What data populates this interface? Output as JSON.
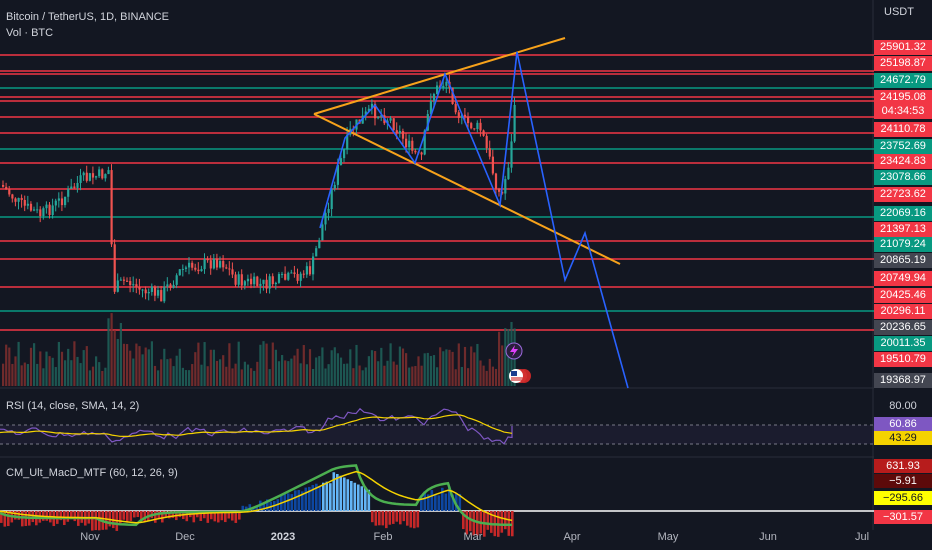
{
  "header": {
    "symbol_line": "Bitcoin / TetherUS, 1D, BINANCE",
    "volume_line": "Vol · BTC"
  },
  "price_axis": {
    "unit": "USDT",
    "tags": [
      {
        "value": "25901.32",
        "color": "#f23645"
      },
      {
        "value": "25198.87",
        "color": "#f23645"
      },
      {
        "value": "24672.79",
        "color": "#089981"
      },
      {
        "value": "24195.08",
        "color": "#f23645"
      },
      {
        "value": "04:34:53",
        "color": "#f23645"
      },
      {
        "value": "24110.78",
        "color": "#f23645"
      },
      {
        "value": "23752.69",
        "color": "#089981"
      },
      {
        "value": "23424.83",
        "color": "#f23645"
      },
      {
        "value": "23078.66",
        "color": "#089981"
      },
      {
        "value": "22723.62",
        "color": "#f23645"
      },
      {
        "value": "22069.16",
        "color": "#089981"
      },
      {
        "value": "21397.13",
        "color": "#f23645"
      },
      {
        "value": "21079.24",
        "color": "#089981"
      },
      {
        "value": "20865.19",
        "color": "#434651"
      },
      {
        "value": "20749.94",
        "color": "#f23645"
      },
      {
        "value": "20425.46",
        "color": "#f23645"
      },
      {
        "value": "20296.11",
        "color": "#f23645"
      },
      {
        "value": "20236.65",
        "color": "#434651"
      },
      {
        "value": "20011.35",
        "color": "#089981"
      },
      {
        "value": "19510.79",
        "color": "#f23645"
      },
      {
        "value": "19368.97",
        "color": "#434651"
      }
    ]
  },
  "time_axis": [
    "Nov",
    "Dec",
    "2023",
    "Feb",
    "Mar",
    "Apr",
    "May",
    "Jun",
    "Jul"
  ],
  "rsi": {
    "title": "RSI (14, close, SMA, 14, 2)",
    "tags": [
      {
        "value": "80.00",
        "bg": "#131722",
        "fg": "#d1d4dc"
      },
      {
        "value": "60.86",
        "bg": "#7e57c2",
        "fg": "#ffffff"
      },
      {
        "value": "43.29",
        "bg": "#f5d300",
        "fg": "#131722"
      }
    ]
  },
  "macd": {
    "title": "CM_Ult_MacD_MTF (60, 12, 26, 9)",
    "tags": [
      {
        "value": "631.93",
        "bg": "#b71c1c",
        "fg": "#ffffff"
      },
      {
        "value": "−5.91",
        "bg": "#5d0a0a",
        "fg": "#ffffff"
      },
      {
        "value": "−295.66",
        "bg": "#ffff00",
        "fg": "#131722"
      },
      {
        "value": "−301.57",
        "bg": "#f23645",
        "fg": "#ffffff"
      }
    ]
  },
  "colors": {
    "background": "#131722",
    "support_line": "#f23645",
    "green_line": "#089981",
    "triangle": "#f7a21b",
    "projection": "#2962ff",
    "rsi_line": "#7e57c2",
    "rsi_ma": "#f5d300"
  },
  "icons": [
    "lightning-icon",
    "us-flag-icon"
  ]
}
